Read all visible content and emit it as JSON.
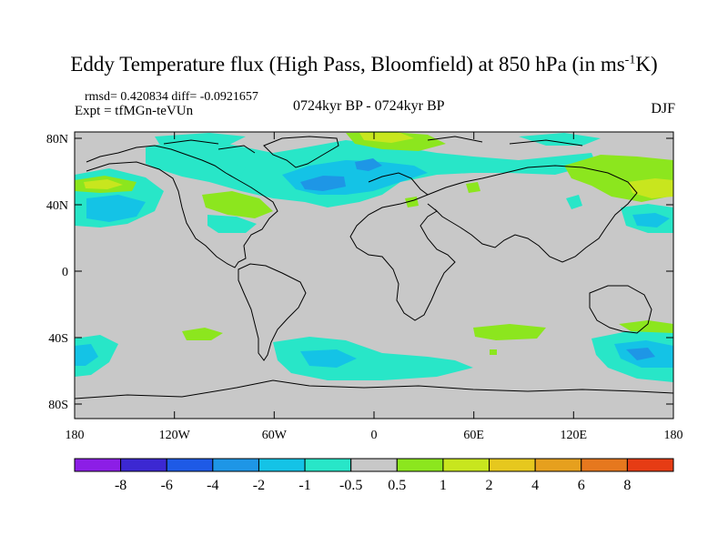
{
  "title": {
    "prefix": "Eddy Temperature flux (High Pass, Bloomfield) at 850 hPa (in ms",
    "superscript": "-1",
    "suffix": "K)"
  },
  "stats_text": "rmsd= 0.420834  diff= -0.0921657",
  "experiment_text": "Expt = tfMGn-teVUn",
  "period_text": "0724kyr BP - 0724kyr BP",
  "season_text": "DJF",
  "lat_labels": [
    "80N",
    "40N",
    "0",
    "40S",
    "80S"
  ],
  "lon_labels": [
    "180",
    "120W",
    "60W",
    "0",
    "60E",
    "120E",
    "180"
  ],
  "colorbar": {
    "colors": [
      "#8c1ee6",
      "#3c28d2",
      "#1e5ae6",
      "#1e96e6",
      "#14c3e6",
      "#28e6c8",
      "#c8c8c8",
      "#8ce61e",
      "#c8e61e",
      "#e6c81e",
      "#e6a01e",
      "#e6781e",
      "#e63c14"
    ],
    "labels": [
      "-8",
      "-6",
      "-4",
      "-2",
      "-1",
      "-0.5",
      "0.5",
      "1",
      "2",
      "4",
      "6",
      "8"
    ]
  },
  "map_colors": {
    "background": "#c8c8c8",
    "coast": "#000000"
  }
}
